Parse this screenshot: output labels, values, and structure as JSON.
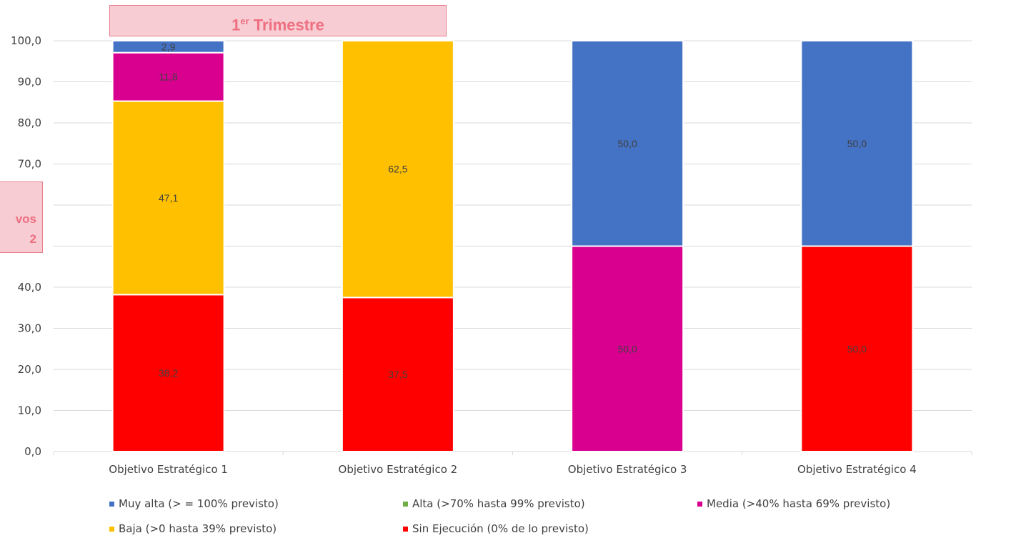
{
  "title": {
    "main": "1",
    "sup": "er",
    "rest": " Trimestre"
  },
  "side_label": {
    "line1": "vos",
    "line2": "2"
  },
  "chart_data": {
    "type": "bar",
    "stacked": true,
    "categories": [
      "Objetivo Estratégico 1",
      "Objetivo Estratégico 2",
      "Objetivo Estratégico 3",
      "Objetivo Estratégico 4"
    ],
    "series": [
      {
        "name": "Sin Ejecución (0% de lo previsto)",
        "color": "#ff0000",
        "values": [
          38.2,
          37.5,
          0,
          50.0
        ]
      },
      {
        "name": "Baja (>0  hasta 39% previsto)",
        "color": "#ffc000",
        "values": [
          47.1,
          62.5,
          0,
          0
        ]
      },
      {
        "name": "Media (>40% hasta 69% previsto)",
        "color": "#d90090",
        "values": [
          11.8,
          0,
          50.0,
          0
        ]
      },
      {
        "name": "Alta (>70% hasta 99% previsto)",
        "color": "#70ad47",
        "values": [
          0,
          0,
          0,
          0
        ]
      },
      {
        "name": "Muy alta (> = 100% previsto)",
        "color": "#4472c4",
        "values": [
          2.9,
          0,
          50.0,
          50.0
        ]
      }
    ],
    "data_labels": [
      [
        "38,2",
        "37,5",
        null,
        "50,0"
      ],
      [
        "47,1",
        "62,5",
        null,
        null
      ],
      [
        "11,8",
        null,
        "50,0",
        null
      ],
      [
        null,
        null,
        null,
        null
      ],
      [
        "2,9",
        null,
        "50,0",
        "50,0"
      ]
    ],
    "yticks": [
      "0,0",
      "10,0",
      "20,0",
      "30,0",
      "40,0",
      "",
      "",
      "70,0",
      "80,0",
      "90,0",
      "100,0"
    ],
    "ylim": [
      0,
      100
    ],
    "grid": true,
    "legend_position": "bottom"
  },
  "legend": [
    {
      "label": "Muy alta (> = 100% previsto)",
      "color": "#4472c4"
    },
    {
      "label": "Alta (>70% hasta 99% previsto)",
      "color": "#70ad47"
    },
    {
      "label": "Media (>40% hasta 69% previsto)",
      "color": "#d90090"
    },
    {
      "label": "Baja (>0  hasta 39% previsto)",
      "color": "#ffc000"
    },
    {
      "label": "Sin Ejecución (0% de lo previsto)",
      "color": "#ff0000"
    }
  ]
}
